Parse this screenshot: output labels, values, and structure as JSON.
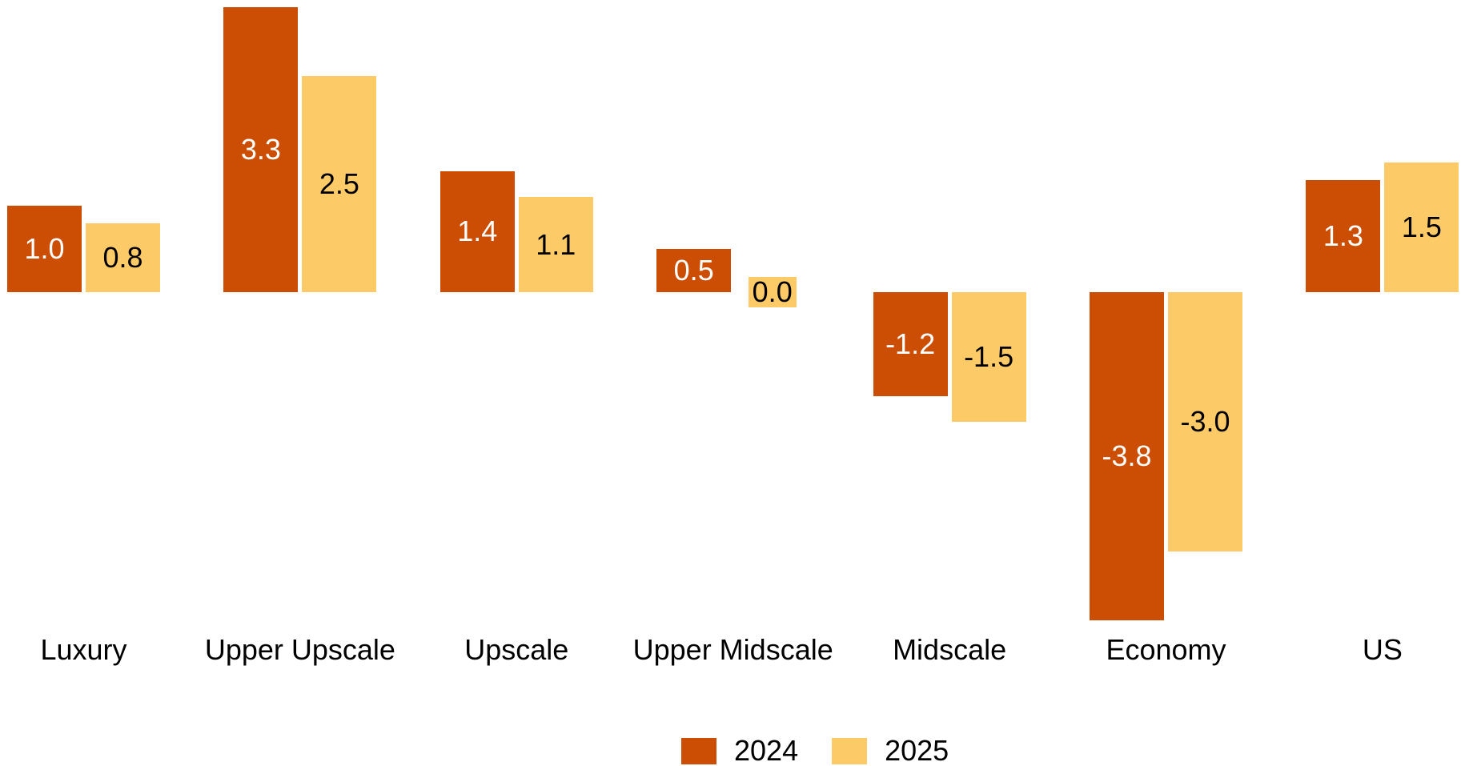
{
  "chart_data": {
    "type": "bar",
    "title": "",
    "categories": [
      "Luxury",
      "Upper Upscale",
      "Upscale",
      "Upper Midscale",
      "Midscale",
      "Economy",
      "US"
    ],
    "series": [
      {
        "name": "2024",
        "color": "#CC4E05",
        "label_color": "#FFFFFF",
        "values": [
          1.0,
          3.3,
          1.4,
          0.5,
          -1.2,
          -3.8,
          1.3
        ]
      },
      {
        "name": "2025",
        "color": "#FCCB67",
        "label_color": "#000000",
        "values": [
          0.8,
          2.5,
          1.1,
          0.0,
          -1.5,
          -3.0,
          1.5
        ]
      }
    ],
    "value_label_decimals": 1,
    "value_labels_inside_bars": true,
    "axes_visible": false,
    "grid": false,
    "baseline_value": 0,
    "ylim": [
      -4.0,
      3.4
    ],
    "legend_position": "bottom-center",
    "legend_items": [
      "2024",
      "2025"
    ]
  }
}
